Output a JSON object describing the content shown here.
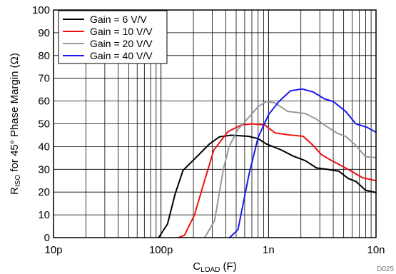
{
  "chart_data": {
    "type": "line",
    "xscale": "log",
    "xlim": [
      1e-11,
      1e-08
    ],
    "ylim": [
      0,
      100
    ],
    "grid": true,
    "legend_position": "top-left",
    "x_ticks": [
      {
        "value": 1e-11,
        "label": "10p"
      },
      {
        "value": 1e-10,
        "label": "100p"
      },
      {
        "value": 1e-09,
        "label": "1n"
      },
      {
        "value": 1e-08,
        "label": "10n"
      }
    ],
    "y_ticks": [
      0,
      10,
      20,
      30,
      40,
      50,
      60,
      70,
      80,
      90,
      100
    ],
    "xlabel": {
      "main": "C",
      "sub": "LOAD",
      "suffix": " (F)"
    },
    "ylabel": {
      "main": "R",
      "sub": "ISO",
      "suffix": " for 45° Phase Margin (Ω)"
    },
    "chart_id": "D025",
    "series": [
      {
        "name": "Gain = 6 V/V",
        "color": "#000000",
        "points": [
          [
            9.5e-11,
            0
          ],
          [
            1.15e-10,
            6
          ],
          [
            1.35e-10,
            19
          ],
          [
            1.6e-10,
            29.5
          ],
          [
            2.2e-10,
            36
          ],
          [
            2.8e-10,
            41
          ],
          [
            3.5e-10,
            44.3
          ],
          [
            4.5e-10,
            45
          ],
          [
            6.5e-10,
            44.5
          ],
          [
            8e-10,
            43.5
          ],
          [
            9.5e-10,
            41.2
          ],
          [
            1.3e-09,
            38.6
          ],
          [
            1.7e-09,
            35.8
          ],
          [
            2.2e-09,
            33.8
          ],
          [
            2.8e-09,
            30.6
          ],
          [
            3.5e-09,
            30
          ],
          [
            4.5e-09,
            29.2
          ],
          [
            5.5e-09,
            26
          ],
          [
            6.5e-09,
            24.7
          ],
          [
            8e-09,
            20.8
          ],
          [
            1e-08,
            19.8
          ]
        ]
      },
      {
        "name": "Gain = 10 V/V",
        "color": "#ee1111",
        "points": [
          [
            1.45e-10,
            0
          ],
          [
            1.65e-10,
            1
          ],
          [
            2.05e-10,
            10
          ],
          [
            2.45e-10,
            22.5
          ],
          [
            3.1e-10,
            38.5
          ],
          [
            4.2e-10,
            46.6
          ],
          [
            5.6e-10,
            49.5
          ],
          [
            7e-10,
            50
          ],
          [
            9.2e-10,
            49.5
          ],
          [
            1.15e-09,
            46
          ],
          [
            1.5e-09,
            45.2
          ],
          [
            2.1e-09,
            44.5
          ],
          [
            2.6e-09,
            40.5
          ],
          [
            3.1e-09,
            36.5
          ],
          [
            3.8e-09,
            34
          ],
          [
            4.8e-09,
            31.5
          ],
          [
            6e-09,
            29
          ],
          [
            7.5e-09,
            26.3
          ],
          [
            1e-08,
            25
          ]
        ]
      },
      {
        "name": "Gain = 20 V/V",
        "color": "#999999",
        "points": [
          [
            2.55e-10,
            0
          ],
          [
            3.15e-10,
            7.5
          ],
          [
            3.8e-10,
            30
          ],
          [
            4.3e-10,
            40
          ],
          [
            5.2e-10,
            47.5
          ],
          [
            6.6e-10,
            53
          ],
          [
            8e-10,
            57.5
          ],
          [
            9.5e-10,
            59.8
          ],
          [
            1.15e-09,
            59.2
          ],
          [
            1.5e-09,
            55.5
          ],
          [
            2.2e-09,
            54.5
          ],
          [
            2.8e-09,
            52
          ],
          [
            3.3e-09,
            49.5
          ],
          [
            4.3e-09,
            46
          ],
          [
            5.2e-09,
            44.5
          ],
          [
            6.5e-09,
            40.5
          ],
          [
            8e-09,
            35.5
          ],
          [
            1e-08,
            35.2
          ]
        ]
      },
      {
        "name": "Gain = 40 V/V",
        "color": "#1a1aee",
        "points": [
          [
            4.35e-10,
            0
          ],
          [
            5.2e-10,
            3.5
          ],
          [
            6.6e-10,
            28
          ],
          [
            8e-10,
            44
          ],
          [
            1e-09,
            54
          ],
          [
            1.25e-09,
            59.8
          ],
          [
            1.6e-09,
            64.5
          ],
          [
            2.05e-09,
            65.3
          ],
          [
            2.6e-09,
            64
          ],
          [
            3.3e-09,
            61
          ],
          [
            4e-09,
            59.8
          ],
          [
            5.2e-09,
            55.5
          ],
          [
            6.5e-09,
            50
          ],
          [
            8.2e-09,
            48.5
          ],
          [
            1e-08,
            46.3
          ]
        ]
      }
    ]
  }
}
